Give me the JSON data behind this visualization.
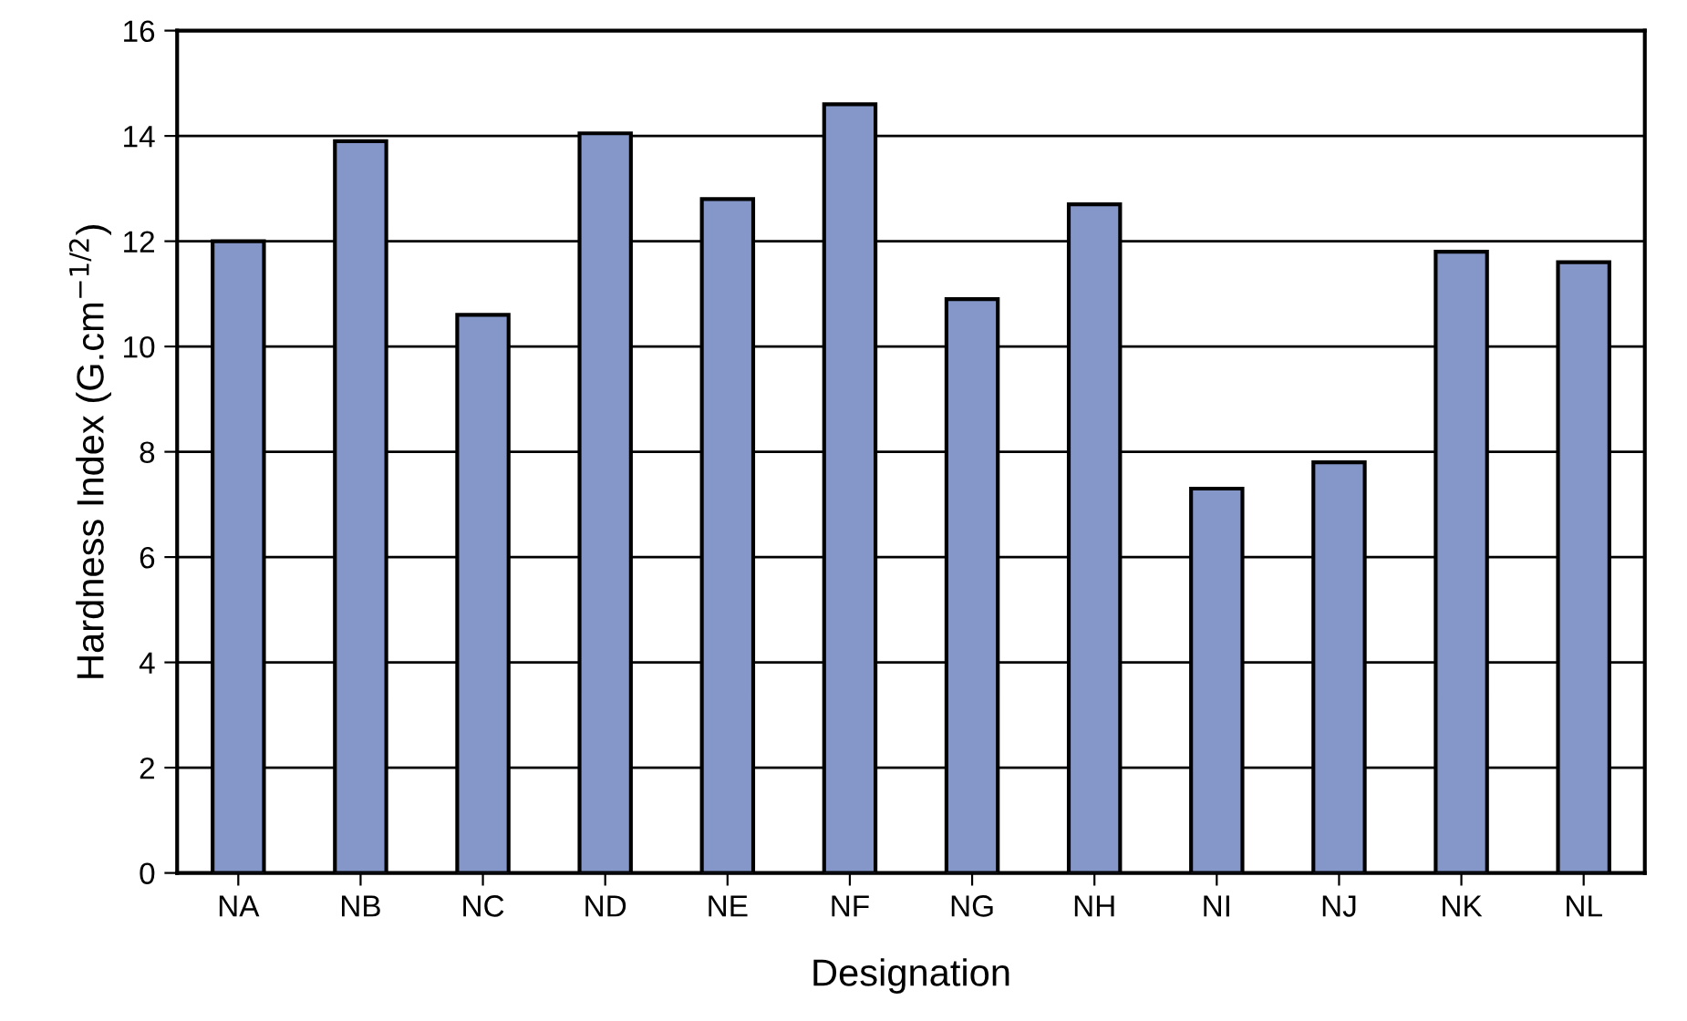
{
  "chart_data": {
    "type": "bar",
    "xlabel": "Designation",
    "ylabel": "Hardness Index (G.cm$^{−1/2}$)",
    "categories": [
      "NA",
      "NB",
      "NC",
      "ND",
      "NE",
      "NF",
      "NG",
      "NH",
      "NI",
      "NJ",
      "NK",
      "NL"
    ],
    "values": [
      12.0,
      13.9,
      10.6,
      14.05,
      12.8,
      14.6,
      10.9,
      12.7,
      7.3,
      7.8,
      11.8,
      11.6
    ],
    "color": "#8596c8",
    "ylim": [
      0,
      16
    ],
    "yticks": [
      0,
      2,
      4,
      6,
      8,
      10,
      12,
      14,
      16
    ],
    "grid": "y"
  }
}
